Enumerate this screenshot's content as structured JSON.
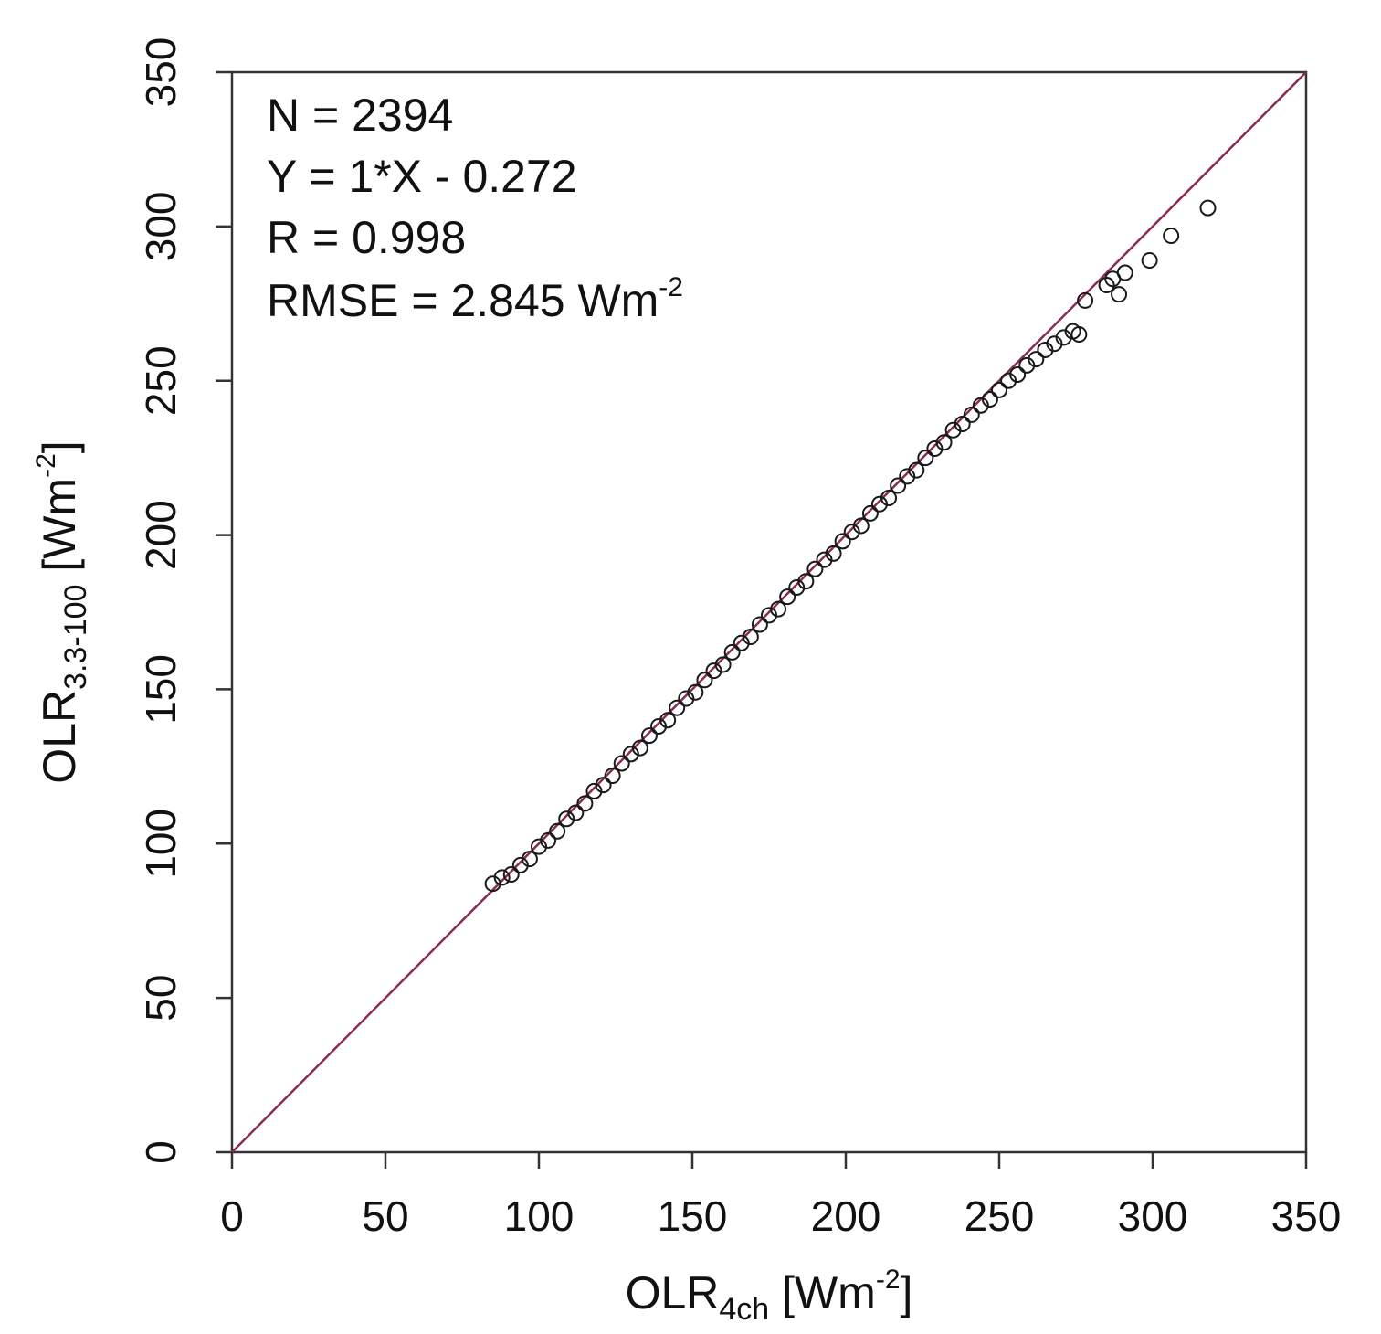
{
  "chart_data": {
    "type": "scatter",
    "xlabel": {
      "main": "OLR",
      "subscript": "4ch",
      "unit_open": " [Wm",
      "unit_exp": "-2",
      "unit_close": "]"
    },
    "ylabel": {
      "main": "OLR",
      "subscript": "3.3-100",
      "unit_open": " [Wm",
      "unit_exp": "-2",
      "unit_close": "]"
    },
    "xlim": [
      0,
      350
    ],
    "ylim": [
      0,
      350
    ],
    "xticks": [
      "0",
      "50",
      "100",
      "150",
      "200",
      "250",
      "300",
      "350"
    ],
    "yticks": [
      "0",
      "50",
      "100",
      "150",
      "200",
      "250",
      "300",
      "350"
    ],
    "grid": false,
    "annotations": {
      "n": "N = 2394",
      "fit": "Y = 1*X - 0.272",
      "r": "R = 0.998",
      "rmse_main": "RMSE = 2.845 Wm",
      "rmse_exp": "-2"
    },
    "reference_line": {
      "slope": 1,
      "intercept": 0,
      "color": "#8b2a5a"
    },
    "marker_color": "#1a1a1a",
    "series": [
      {
        "points": [
          [
            85,
            87
          ],
          [
            88,
            89
          ],
          [
            91,
            90
          ],
          [
            94,
            93
          ],
          [
            97,
            95
          ],
          [
            100,
            99
          ],
          [
            103,
            101
          ],
          [
            106,
            104
          ],
          [
            109,
            108
          ],
          [
            112,
            110
          ],
          [
            115,
            113
          ],
          [
            118,
            117
          ],
          [
            121,
            119
          ],
          [
            124,
            122
          ],
          [
            127,
            126
          ],
          [
            130,
            129
          ],
          [
            133,
            131
          ],
          [
            136,
            135
          ],
          [
            139,
            138
          ],
          [
            142,
            140
          ],
          [
            145,
            144
          ],
          [
            148,
            147
          ],
          [
            151,
            149
          ],
          [
            154,
            153
          ],
          [
            157,
            156
          ],
          [
            160,
            158
          ],
          [
            163,
            162
          ],
          [
            166,
            165
          ],
          [
            169,
            167
          ],
          [
            172,
            171
          ],
          [
            175,
            174
          ],
          [
            178,
            176
          ],
          [
            181,
            180
          ],
          [
            184,
            183
          ],
          [
            187,
            185
          ],
          [
            190,
            189
          ],
          [
            193,
            192
          ],
          [
            196,
            194
          ],
          [
            199,
            198
          ],
          [
            202,
            201
          ],
          [
            205,
            203
          ],
          [
            208,
            207
          ],
          [
            211,
            210
          ],
          [
            214,
            212
          ],
          [
            217,
            216
          ],
          [
            220,
            219
          ],
          [
            223,
            221
          ],
          [
            226,
            225
          ],
          [
            229,
            228
          ],
          [
            232,
            230
          ],
          [
            235,
            234
          ],
          [
            238,
            236
          ],
          [
            241,
            239
          ],
          [
            244,
            242
          ],
          [
            247,
            244
          ],
          [
            250,
            247
          ],
          [
            253,
            250
          ],
          [
            256,
            252
          ],
          [
            259,
            255
          ],
          [
            262,
            257
          ],
          [
            265,
            260
          ],
          [
            268,
            262
          ],
          [
            271,
            264
          ],
          [
            274,
            266
          ],
          [
            276,
            265
          ],
          [
            278,
            276
          ],
          [
            285,
            281
          ],
          [
            287,
            283
          ],
          [
            289,
            278
          ],
          [
            291,
            285
          ],
          [
            299,
            289
          ],
          [
            306,
            297
          ],
          [
            318,
            306
          ]
        ]
      }
    ]
  }
}
